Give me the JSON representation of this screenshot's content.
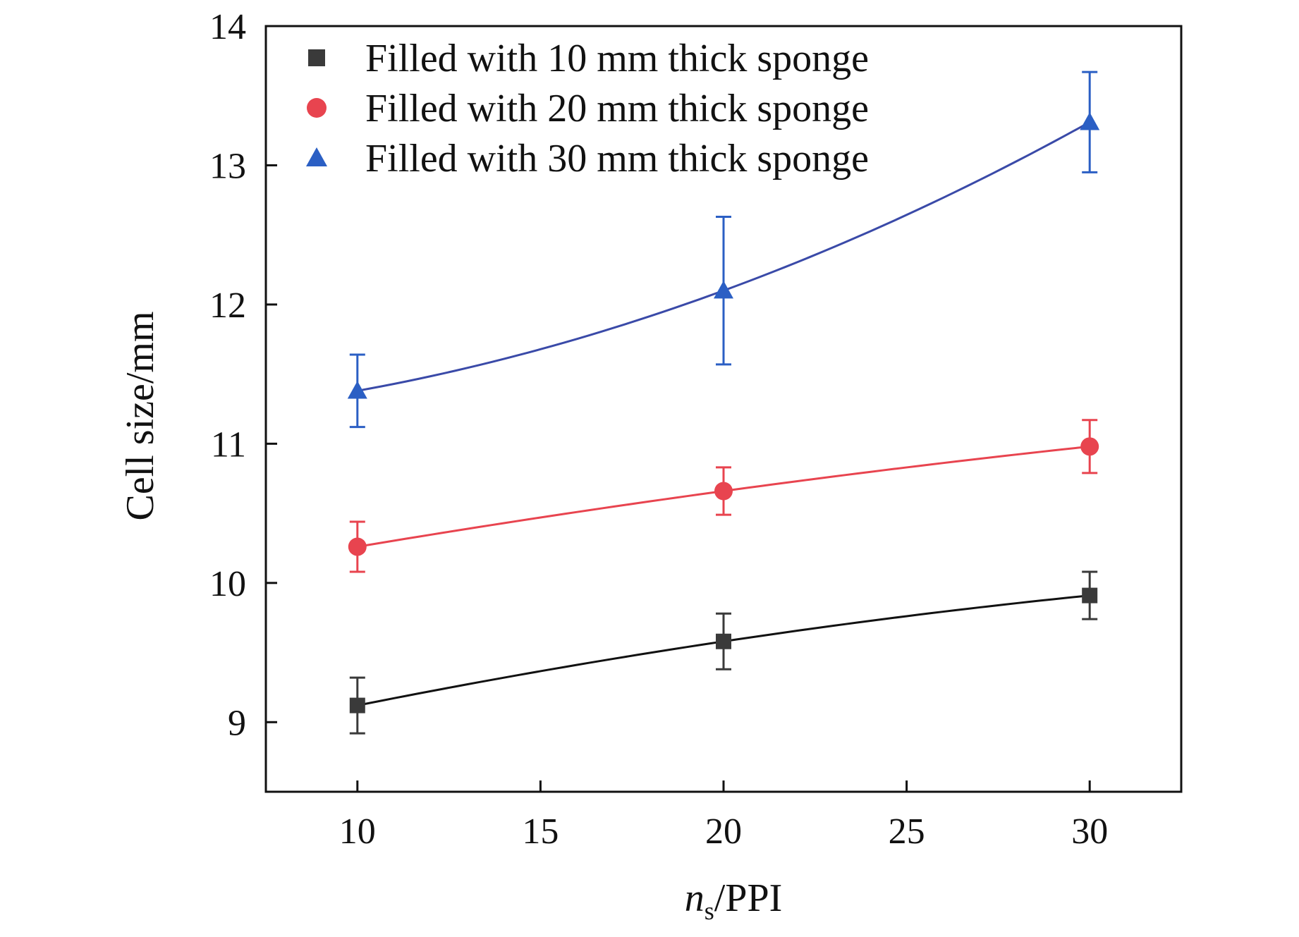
{
  "chart_data": {
    "type": "line",
    "title": "",
    "xlabel_main": "n",
    "xlabel_sub": "s",
    "xlabel_rest": "/PPI",
    "ylabel": "Cell size/mm",
    "xlim": [
      7.5,
      32.5
    ],
    "ylim": [
      8.5,
      14
    ],
    "xticks": [
      10,
      15,
      20,
      25,
      30
    ],
    "yticks": [
      9,
      10,
      11,
      12,
      13,
      14
    ],
    "grid": false,
    "legend_position": "top-left",
    "x": [
      10,
      20,
      30
    ],
    "series": [
      {
        "name": "Filled with 10 mm thick sponge",
        "marker": "square",
        "color": "#3a3a3a",
        "line_color": "#111111",
        "values": [
          9.12,
          9.58,
          9.91
        ],
        "errors": [
          0.2,
          0.2,
          0.17
        ]
      },
      {
        "name": "Filled with 20 mm thick sponge",
        "marker": "circle",
        "color": "#e8444f",
        "line_color": "#e8444f",
        "values": [
          10.26,
          10.66,
          10.98
        ],
        "errors": [
          0.18,
          0.17,
          0.19
        ]
      },
      {
        "name": "Filled with 30 mm thick sponge",
        "marker": "triangle",
        "color": "#2b5fc4",
        "line_color": "#3a4aa8",
        "values": [
          11.38,
          12.1,
          13.31
        ],
        "errors": [
          0.26,
          0.53,
          0.36
        ]
      }
    ]
  }
}
